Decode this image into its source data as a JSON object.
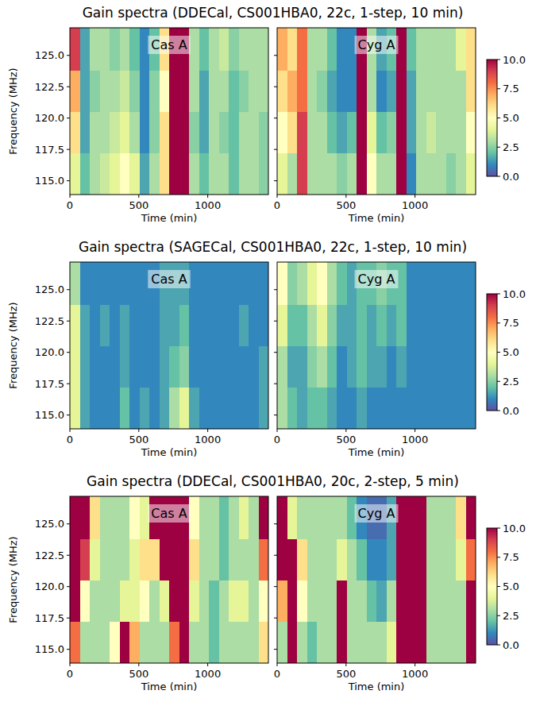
{
  "chart_data": [
    {
      "type": "heatmap",
      "title": "Gain spectra (DDECal, CS001HBA0, 22c, 1-step, 10 min)",
      "x_label": "Time (min)",
      "y_label": "Frequency (MHz)",
      "xlim": [
        0,
        1440
      ],
      "ylim": [
        113.9,
        127.2
      ],
      "xticks": [
        0,
        500,
        1000
      ],
      "yticks": [
        {
          "value": 115,
          "label": "115.0"
        },
        {
          "value": 117.5,
          "label": "117.5"
        },
        {
          "value": 120,
          "label": "120.0"
        },
        {
          "value": 122.5,
          "label": "122.5"
        },
        {
          "value": 125,
          "label": "125.0"
        }
      ],
      "x_bins": [
        0,
        72,
        144,
        216,
        288,
        360,
        432,
        504,
        576,
        648,
        720,
        792,
        864,
        936,
        1008,
        1080,
        1152,
        1224,
        1296,
        1368,
        1440
      ],
      "y_bins": [
        113.9,
        117.2,
        120.5,
        123.8,
        127.2
      ],
      "colorbar_range": [
        0,
        10
      ],
      "colorbar_ticks": [
        {
          "value": 0,
          "label": "0.0"
        },
        {
          "value": 2.5,
          "label": "2.5"
        },
        {
          "value": 5,
          "label": "5.0"
        },
        {
          "value": 7.5,
          "label": "7.5"
        },
        {
          "value": 10,
          "label": "10.0"
        }
      ],
      "panels": [
        {
          "label": "Cas A",
          "cells": [
            [
              4,
              2,
              3,
              3.5,
              4,
              5,
              4,
              1.5,
              3,
              6,
              10,
              10,
              3,
              2,
              3,
              3,
              2,
              3,
              3,
              2.5
            ],
            [
              6,
              1.5,
              3,
              3,
              3.5,
              4,
              3,
              1,
              2.5,
              6,
              10,
              10,
              2.5,
              1.5,
              3,
              2.5,
              2,
              3,
              3,
              2.5
            ],
            [
              7,
              1.5,
              2.5,
              3,
              3,
              3.5,
              2.5,
              1,
              2.5,
              5,
              10,
              10,
              3,
              1.5,
              3,
              3,
              2,
              2.5,
              3,
              3
            ],
            [
              9,
              1.5,
              3,
              3,
              2.5,
              3,
              2,
              1,
              2,
              6,
              10,
              10,
              3,
              2,
              3,
              3.5,
              2.5,
              3,
              3,
              3
            ]
          ]
        },
        {
          "label": "Cyg A",
          "cells": [
            [
              4,
              3,
              9,
              3,
              3,
              3,
              2.5,
              3,
              10,
              5,
              3,
              3,
              10,
              1,
              3,
              3,
              3,
              2.5,
              3,
              4
            ],
            [
              5,
              6,
              9,
              3,
              3,
              2,
              1.5,
              2,
              10,
              4,
              2,
              2.5,
              10,
              1.5,
              3,
              3.5,
              3,
              3,
              3,
              5
            ],
            [
              6,
              7,
              8,
              3,
              2.5,
              1.5,
              1,
              1,
              10,
              3,
              1,
              1.5,
              10,
              1.5,
              3,
              3,
              3,
              3,
              3,
              6
            ],
            [
              7,
              6,
              8,
              3,
              3,
              2,
              1,
              1,
              10,
              3,
              1.5,
              2,
              10,
              2,
              3,
              3,
              3,
              3,
              4,
              6
            ]
          ]
        }
      ]
    },
    {
      "type": "heatmap",
      "title": "Gain spectra (SAGECal, CS001HBA0, 22c, 1-step, 10 min)",
      "x_label": "Time (min)",
      "y_label": "Frequency (MHz)",
      "xlim": [
        0,
        1440
      ],
      "ylim": [
        113.9,
        127.2
      ],
      "xticks": [
        0,
        500,
        1000
      ],
      "yticks": [
        {
          "value": 115,
          "label": "115.0"
        },
        {
          "value": 117.5,
          "label": "117.5"
        },
        {
          "value": 120,
          "label": "120.0"
        },
        {
          "value": 122.5,
          "label": "122.5"
        },
        {
          "value": 125,
          "label": "125.0"
        }
      ],
      "x_bins": [
        0,
        72,
        144,
        216,
        288,
        360,
        432,
        504,
        576,
        648,
        720,
        792,
        864,
        936,
        1008,
        1080,
        1152,
        1224,
        1296,
        1368,
        1440
      ],
      "y_bins": [
        113.9,
        117.2,
        120.5,
        123.8,
        127.2
      ],
      "colorbar_range": [
        0,
        10
      ],
      "colorbar_ticks": [
        {
          "value": 0,
          "label": "0.0"
        },
        {
          "value": 2.5,
          "label": "2.5"
        },
        {
          "value": 5,
          "label": "5.0"
        },
        {
          "value": 7.5,
          "label": "7.5"
        },
        {
          "value": 10,
          "label": "10.0"
        }
      ],
      "panels": [
        {
          "label": "Cas A",
          "cells": [
            [
              4,
              1.5,
              1,
              1,
              1,
              2,
              1,
              1.5,
              1,
              1.5,
              3,
              4,
              1.5,
              1,
              1,
              1,
              1,
              1,
              1,
              1.5
            ],
            [
              4,
              1.5,
              1,
              1,
              1,
              1.5,
              1,
              1,
              1,
              1.5,
              2,
              2.5,
              1,
              1,
              1,
              1,
              1,
              1,
              1,
              1.5
            ],
            [
              4,
              1.5,
              1,
              1.5,
              1,
              1.5,
              1,
              1,
              1,
              1.5,
              1.5,
              2,
              1,
              1,
              1,
              1,
              1,
              1.5,
              1,
              1
            ],
            [
              3,
              1,
              1,
              1,
              1,
              1,
              1,
              1,
              1,
              1.5,
              1.5,
              1.5,
              1,
              1,
              1,
              1,
              1,
              1,
              1,
              1
            ]
          ]
        },
        {
          "label": "Cyg A",
          "cells": [
            [
              3,
              2,
              1.5,
              2,
              2,
              1.5,
              1,
              1,
              1.5,
              1,
              1,
              1,
              1,
              1,
              1,
              1,
              1,
              1,
              1,
              1
            ],
            [
              3,
              1.5,
              1.5,
              2.5,
              3,
              2,
              1,
              1.5,
              2,
              1.5,
              1.5,
              1,
              1.5,
              1,
              1,
              1,
              1,
              1,
              1,
              1
            ],
            [
              4,
              2,
              2,
              3,
              4,
              2.5,
              1.5,
              1.5,
              2,
              1.5,
              2,
              1.5,
              2,
              1,
              1,
              1,
              1,
              1,
              1,
              1
            ],
            [
              5,
              2.5,
              3,
              4,
              5,
              3,
              2,
              1.5,
              2,
              2,
              2.5,
              2,
              2,
              1,
              1,
              1,
              1,
              1,
              1,
              1
            ]
          ]
        }
      ]
    },
    {
      "type": "heatmap",
      "title": "Gain spectra (DDECal, CS001HBA0, 20c, 2-step, 5 min)",
      "x_label": "Time (min)",
      "y_label": "Frequency (MHz)",
      "xlim": [
        0,
        1440
      ],
      "ylim": [
        113.9,
        127.2
      ],
      "xticks": [
        0,
        500,
        1000
      ],
      "yticks": [
        {
          "value": 115,
          "label": "115.0"
        },
        {
          "value": 117.5,
          "label": "117.5"
        },
        {
          "value": 120,
          "label": "120.0"
        },
        {
          "value": 122.5,
          "label": "122.5"
        },
        {
          "value": 125,
          "label": "125.0"
        }
      ],
      "x_bins": [
        0,
        72,
        144,
        216,
        288,
        360,
        432,
        504,
        576,
        648,
        720,
        792,
        864,
        936,
        1008,
        1080,
        1152,
        1224,
        1296,
        1368,
        1440
      ],
      "y_bins": [
        113.9,
        117.2,
        120.5,
        123.8,
        127.2
      ],
      "colorbar_range": [
        0,
        10
      ],
      "colorbar_ticks": [
        {
          "value": 0,
          "label": "0.0"
        },
        {
          "value": 2.5,
          "label": "2.5"
        },
        {
          "value": 5,
          "label": "5.0"
        },
        {
          "value": 7.5,
          "label": "7.5"
        },
        {
          "value": 10,
          "label": "10.0"
        }
      ],
      "panels": [
        {
          "label": "Cas A",
          "cells": [
            [
              8,
              3,
              3,
              3,
              5,
              10,
              7,
              3,
              3,
              3,
              8,
              10,
              3,
              3,
              2,
              3,
              3,
              3,
              3,
              6
            ],
            [
              10,
              5,
              3,
              3,
              3,
              4,
              4,
              5,
              3,
              4,
              10,
              10,
              4,
              3,
              2,
              3,
              4,
              4,
              3,
              5
            ],
            [
              10,
              9,
              4,
              3,
              3,
              3,
              4,
              6,
              6,
              10,
              10,
              10,
              6,
              3,
              3,
              2,
              3,
              3,
              3,
              8
            ],
            [
              10,
              10,
              6,
              3,
              3,
              3,
              5,
              4,
              10,
              10,
              10,
              10,
              5,
              3,
              3,
              2,
              3,
              4,
              3,
              10
            ]
          ]
        },
        {
          "label": "Cyg A",
          "cells": [
            [
              3,
              10,
              3,
              2,
              3,
              3,
              10,
              3,
              3,
              3,
              3,
              4,
              10,
              10,
              10,
              3,
              3,
              3,
              3,
              10
            ],
            [
              7,
              10,
              5,
              3,
              3,
              3,
              10,
              3,
              3,
              2,
              1.5,
              3,
              10,
              10,
              10,
              3,
              3,
              3,
              3,
              10
            ],
            [
              10,
              10,
              6,
              3,
              3,
              3,
              4,
              3,
              2,
              1,
              1,
              1.5,
              10,
              10,
              10,
              3,
              3,
              3,
              4,
              8
            ],
            [
              10,
              4,
              3,
              3,
              3,
              3,
              3,
              2,
              1,
              0.5,
              0.5,
              1.5,
              10,
              10,
              10,
              3,
              3,
              3,
              6,
              10
            ]
          ]
        }
      ]
    }
  ]
}
